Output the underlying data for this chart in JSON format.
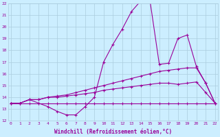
{
  "xlabel": "Windchill (Refroidissement éolien,°C)",
  "bg_color": "#cceeff",
  "grid_color": "#aaccdd",
  "line_color": "#990099",
  "xmin": 0,
  "xmax": 22,
  "ymin": 12,
  "ymax": 22,
  "lines": [
    [
      13.5,
      13.5,
      13.8,
      13.5,
      13.2,
      12.8,
      12.5,
      12.5,
      13.2,
      14.0,
      17.0,
      18.5,
      19.8,
      21.3,
      22.2,
      22.2,
      16.8,
      16.9,
      19.0,
      19.3,
      16.6,
      15.2,
      13.5
    ],
    [
      13.5,
      13.5,
      13.8,
      13.8,
      14.0,
      14.1,
      14.2,
      14.4,
      14.6,
      14.8,
      15.0,
      15.2,
      15.4,
      15.6,
      15.8,
      16.0,
      16.2,
      16.3,
      16.4,
      16.5,
      16.5,
      15.2,
      13.5
    ],
    [
      13.5,
      13.5,
      13.8,
      13.8,
      14.0,
      14.0,
      14.1,
      14.2,
      14.3,
      14.4,
      14.6,
      14.7,
      14.8,
      14.9,
      15.0,
      15.1,
      15.2,
      15.2,
      15.1,
      15.2,
      15.3,
      14.4,
      13.5
    ],
    [
      13.5,
      13.5,
      13.5,
      13.5,
      13.5,
      13.5,
      13.5,
      13.5,
      13.5,
      13.5,
      13.5,
      13.5,
      13.5,
      13.5,
      13.5,
      13.5,
      13.5,
      13.5,
      13.5,
      13.5,
      13.5,
      13.5,
      13.5
    ]
  ]
}
